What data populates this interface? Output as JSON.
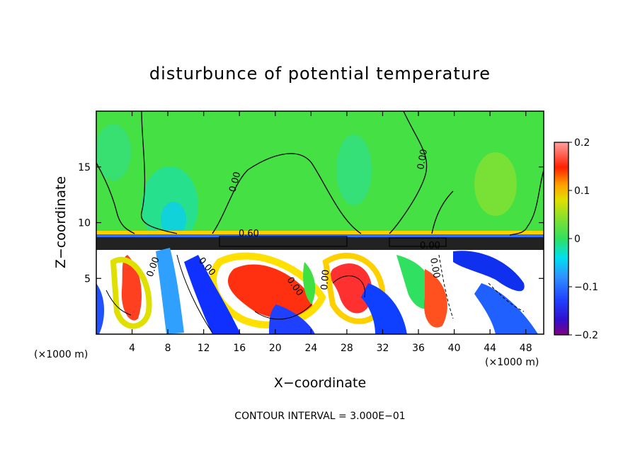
{
  "chart_data": {
    "type": "heatmap",
    "title": "disturbunce of potential temperature",
    "xlabel": "X−coordinate",
    "ylabel": "Z−coordinate",
    "x_unit_left": "(×1000 m)",
    "x_unit_right": "(×1000 m)",
    "xlim": [
      0,
      50
    ],
    "ylim": [
      0,
      20
    ],
    "xticks": [
      4,
      8,
      12,
      16,
      20,
      24,
      28,
      32,
      36,
      40,
      44,
      48
    ],
    "xtick_labels": [
      "4",
      "8",
      "12",
      "16",
      "20",
      "24",
      "28",
      "32",
      "36",
      "40",
      "44",
      "48"
    ],
    "yticks": [
      5,
      10,
      15
    ],
    "ytick_labels": [
      "5",
      "10",
      "15"
    ],
    "colorbar": {
      "min": -0.2,
      "max": 0.2,
      "ticks": [
        0.2,
        0.1,
        0,
        -0.1,
        -0.2
      ],
      "tick_labels": [
        "0.2",
        "0.1",
        "0",
        "−0.1",
        "−0.2"
      ],
      "colors": [
        "#800080",
        "#7a00c8",
        "#2020ff",
        "#4060ff",
        "#30a0ff",
        "#00d0ff",
        "#00f0d0",
        "#30e070",
        "#40e040",
        "#70e030",
        "#a0e020",
        "#d0e000",
        "#ffe000",
        "#ffa000",
        "#ff6000",
        "#ff2000",
        "#ff5050",
        "#ff9090"
      ]
    },
    "contour_labels": [
      "0.00",
      "0.00",
      "0.00",
      "0.60",
      "0.00",
      "0.00",
      "0.00",
      "0.00",
      "0.00"
    ],
    "footer": "CONTOUR INTERVAL = 3.000E−01",
    "colors": {
      "upper_background": "#44e044",
      "lower_background": "#ffffff"
    }
  }
}
